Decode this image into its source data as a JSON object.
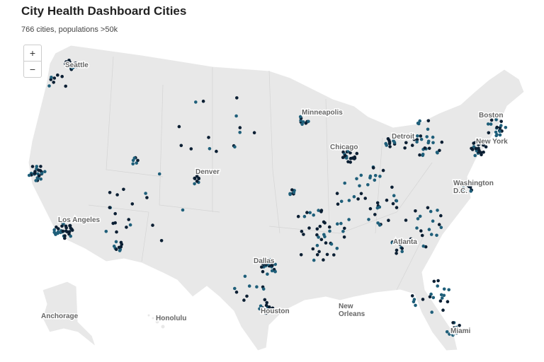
{
  "header": {
    "title": "City Health Dashboard Cities",
    "subtitle": "766 cities, populations >50k"
  },
  "controls": {
    "zoom_in": "+",
    "zoom_out": "−"
  },
  "map": {
    "labels": [
      {
        "name": "Seattle"
      },
      {
        "name": "Minneapolis"
      },
      {
        "name": "Boston"
      },
      {
        "name": "Detroit"
      },
      {
        "name": "Chicago"
      },
      {
        "name": "New York"
      },
      {
        "name": "Denver"
      },
      {
        "lines": [
          "Washington",
          "D.C."
        ]
      },
      {
        "name": "Los Angeles"
      },
      {
        "name": "Atlanta"
      },
      {
        "name": "Dallas"
      },
      {
        "name": "Houston"
      },
      {
        "lines": [
          "New",
          "Orleans"
        ]
      },
      {
        "name": "Miami"
      },
      {
        "name": "Anchorage"
      },
      {
        "name": "Honolulu"
      }
    ]
  }
}
